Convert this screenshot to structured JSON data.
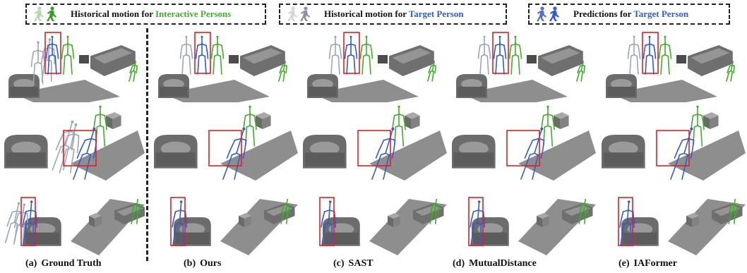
{
  "legend": [
    {
      "icons": "walking-person-green",
      "text_plain": "Historical motion for ",
      "text_colored": "Interactive Persons",
      "color": "#3cae28"
    },
    {
      "icons": "walking-person-gray",
      "text_plain": "Historical motion for ",
      "text_colored": "Target Person",
      "color": "#2e5bd6"
    },
    {
      "icons": "walking-person-blue",
      "text_plain": "Predictions for ",
      "text_colored": "Target Person",
      "color": "#2e5bd6"
    }
  ],
  "columns": [
    {
      "tag": "(a)",
      "label": "Ground Truth"
    },
    {
      "tag": "(b)",
      "label": "Ours"
    },
    {
      "tag": "(c)",
      "label": "SAST"
    },
    {
      "tag": "(d)",
      "label": "MutualDistance"
    },
    {
      "tag": "(e)",
      "label": "IAFormer"
    }
  ],
  "colors": {
    "interactive": "#3cae28",
    "target_history": "#9aa6b8",
    "target_prediction": "#2e5bd6",
    "highlight_box": "#e02020",
    "furniture": "#7d7d7d",
    "floor": "#8e8e8e"
  }
}
